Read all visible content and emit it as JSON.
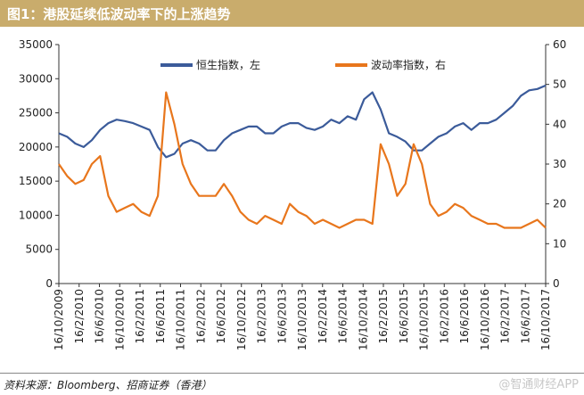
{
  "header": {
    "title": "图1：港股延续低波动率下的上涨趋势"
  },
  "footer": {
    "source": "资料来源：Bloomberg、招商证券（香港）",
    "watermark": "@智通财经APP"
  },
  "colors": {
    "hsi": "#3b5b9a",
    "vol": "#e8761c",
    "title_bg": "#c9ac6c"
  },
  "chart_data": {
    "type": "line",
    "grid": false,
    "legend_position": "top",
    "x_ticks": [
      "16/10/2009",
      "16/2/2010",
      "16/6/2010",
      "16/10/2010",
      "16/2/2011",
      "16/6/2011",
      "16/10/2011",
      "16/2/2012",
      "16/6/2012",
      "16/10/2012",
      "16/2/2013",
      "16/6/2013",
      "16/10/2013",
      "16/2/2014",
      "16/6/2014",
      "16/10/2014",
      "16/2/2015",
      "16/6/2015",
      "16/10/2015",
      "16/2/2016",
      "16/6/2016",
      "16/10/2016",
      "16/2/2017",
      "16/6/2017",
      "16/10/2017"
    ],
    "y_left": {
      "min": 0,
      "max": 35000,
      "ticks": [
        "0",
        "5000",
        "10000",
        "15000",
        "20000",
        "25000",
        "30000",
        "35000"
      ]
    },
    "y_right": {
      "min": 0,
      "max": 60,
      "ticks": [
        "0",
        "10",
        "20",
        "30",
        "40",
        "50",
        "60"
      ]
    },
    "series": [
      {
        "name": "恒生指数，左",
        "axis": "left",
        "values": [
          22000,
          21500,
          20500,
          20000,
          21000,
          22500,
          23500,
          24000,
          23800,
          23500,
          23000,
          22500,
          20000,
          18500,
          19000,
          20500,
          21000,
          20500,
          19500,
          19500,
          21000,
          22000,
          22500,
          23000,
          23000,
          22000,
          22000,
          23000,
          23500,
          23500,
          22800,
          22500,
          23000,
          24000,
          23500,
          24500,
          24000,
          27000,
          28000,
          25500,
          22000,
          21500,
          20800,
          19500,
          19500,
          20500,
          21500,
          22000,
          23000,
          23500,
          22500,
          23500,
          23500,
          24000,
          25000,
          26000,
          27500,
          28300,
          28500,
          29000
        ]
      },
      {
        "name": "波动率指数，右",
        "axis": "right",
        "values": [
          30,
          27,
          25,
          26,
          30,
          32,
          22,
          18,
          19,
          20,
          18,
          17,
          22,
          48,
          40,
          30,
          25,
          22,
          22,
          22,
          25,
          22,
          18,
          16,
          15,
          17,
          16,
          15,
          20,
          18,
          17,
          15,
          16,
          15,
          14,
          15,
          16,
          16,
          15,
          35,
          30,
          22,
          25,
          35,
          30,
          20,
          17,
          18,
          20,
          19,
          17,
          16,
          15,
          15,
          14,
          14,
          14,
          15,
          16,
          14
        ]
      }
    ]
  }
}
